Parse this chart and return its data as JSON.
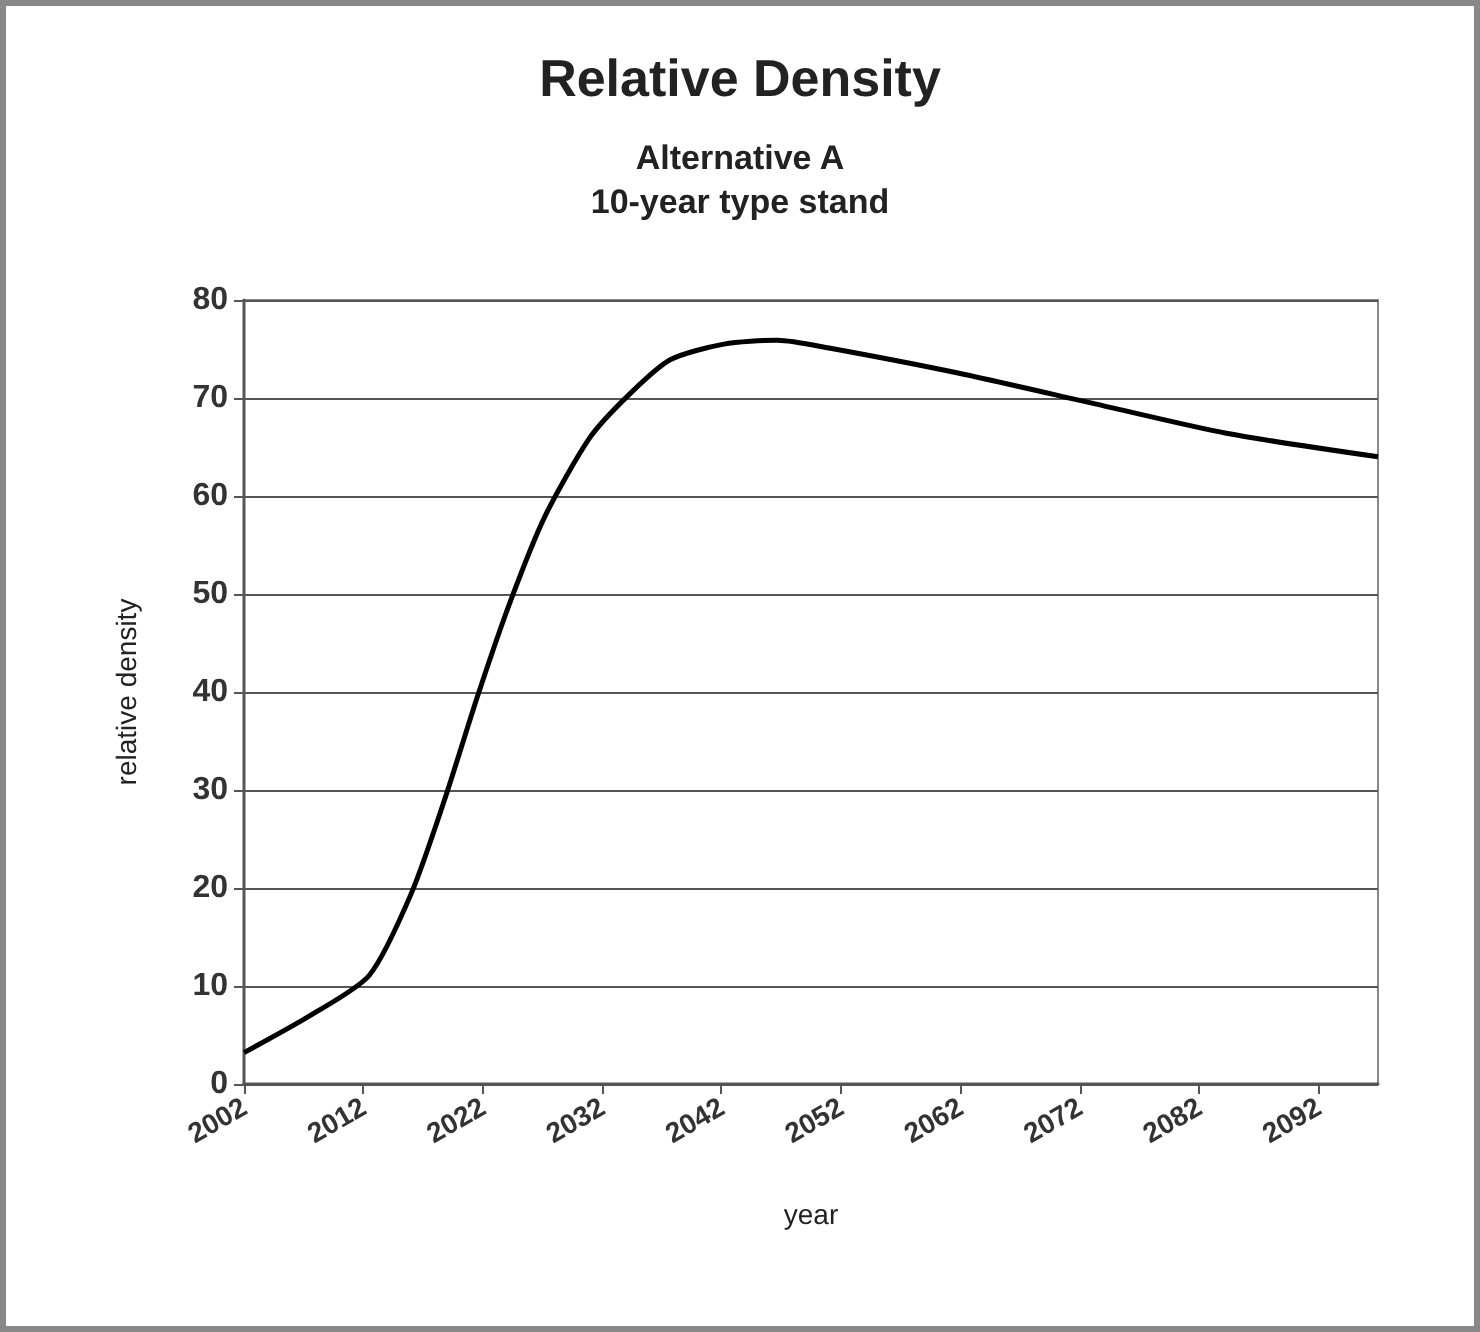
{
  "chart_data": {
    "type": "line",
    "title": "Relative Density",
    "subtitle": "Alternative A\n10-year type stand",
    "xlabel": "year",
    "ylabel": "relative density",
    "x": [
      2002,
      2007.7,
      2012.5,
      2016,
      2018.8,
      2021.6,
      2024.3,
      2027.2,
      2031,
      2034.3,
      2037.7,
      2042.2,
      2046.7,
      2051,
      2062,
      2073.3,
      2084.3,
      2097
    ],
    "series": [
      {
        "color": "#000000",
        "values": [
          3.2,
          7.1,
          11.1,
          19.4,
          29,
          39.7,
          49.2,
          57.9,
          66,
          70.4,
          73.9,
          75.5,
          75.9,
          75.1,
          72.5,
          69.4,
          66.4,
          64
        ]
      }
    ],
    "xlim": [
      2002,
      2097
    ],
    "xticks": [
      2002,
      2012,
      2022,
      2032,
      2042,
      2052,
      2062,
      2072,
      2082,
      2092
    ],
    "ylim": [
      0,
      80
    ],
    "yticks": [
      0,
      10,
      20,
      30,
      40,
      50,
      60,
      70,
      80
    ],
    "grid": "y",
    "marker": "none",
    "line_style": "solid"
  }
}
